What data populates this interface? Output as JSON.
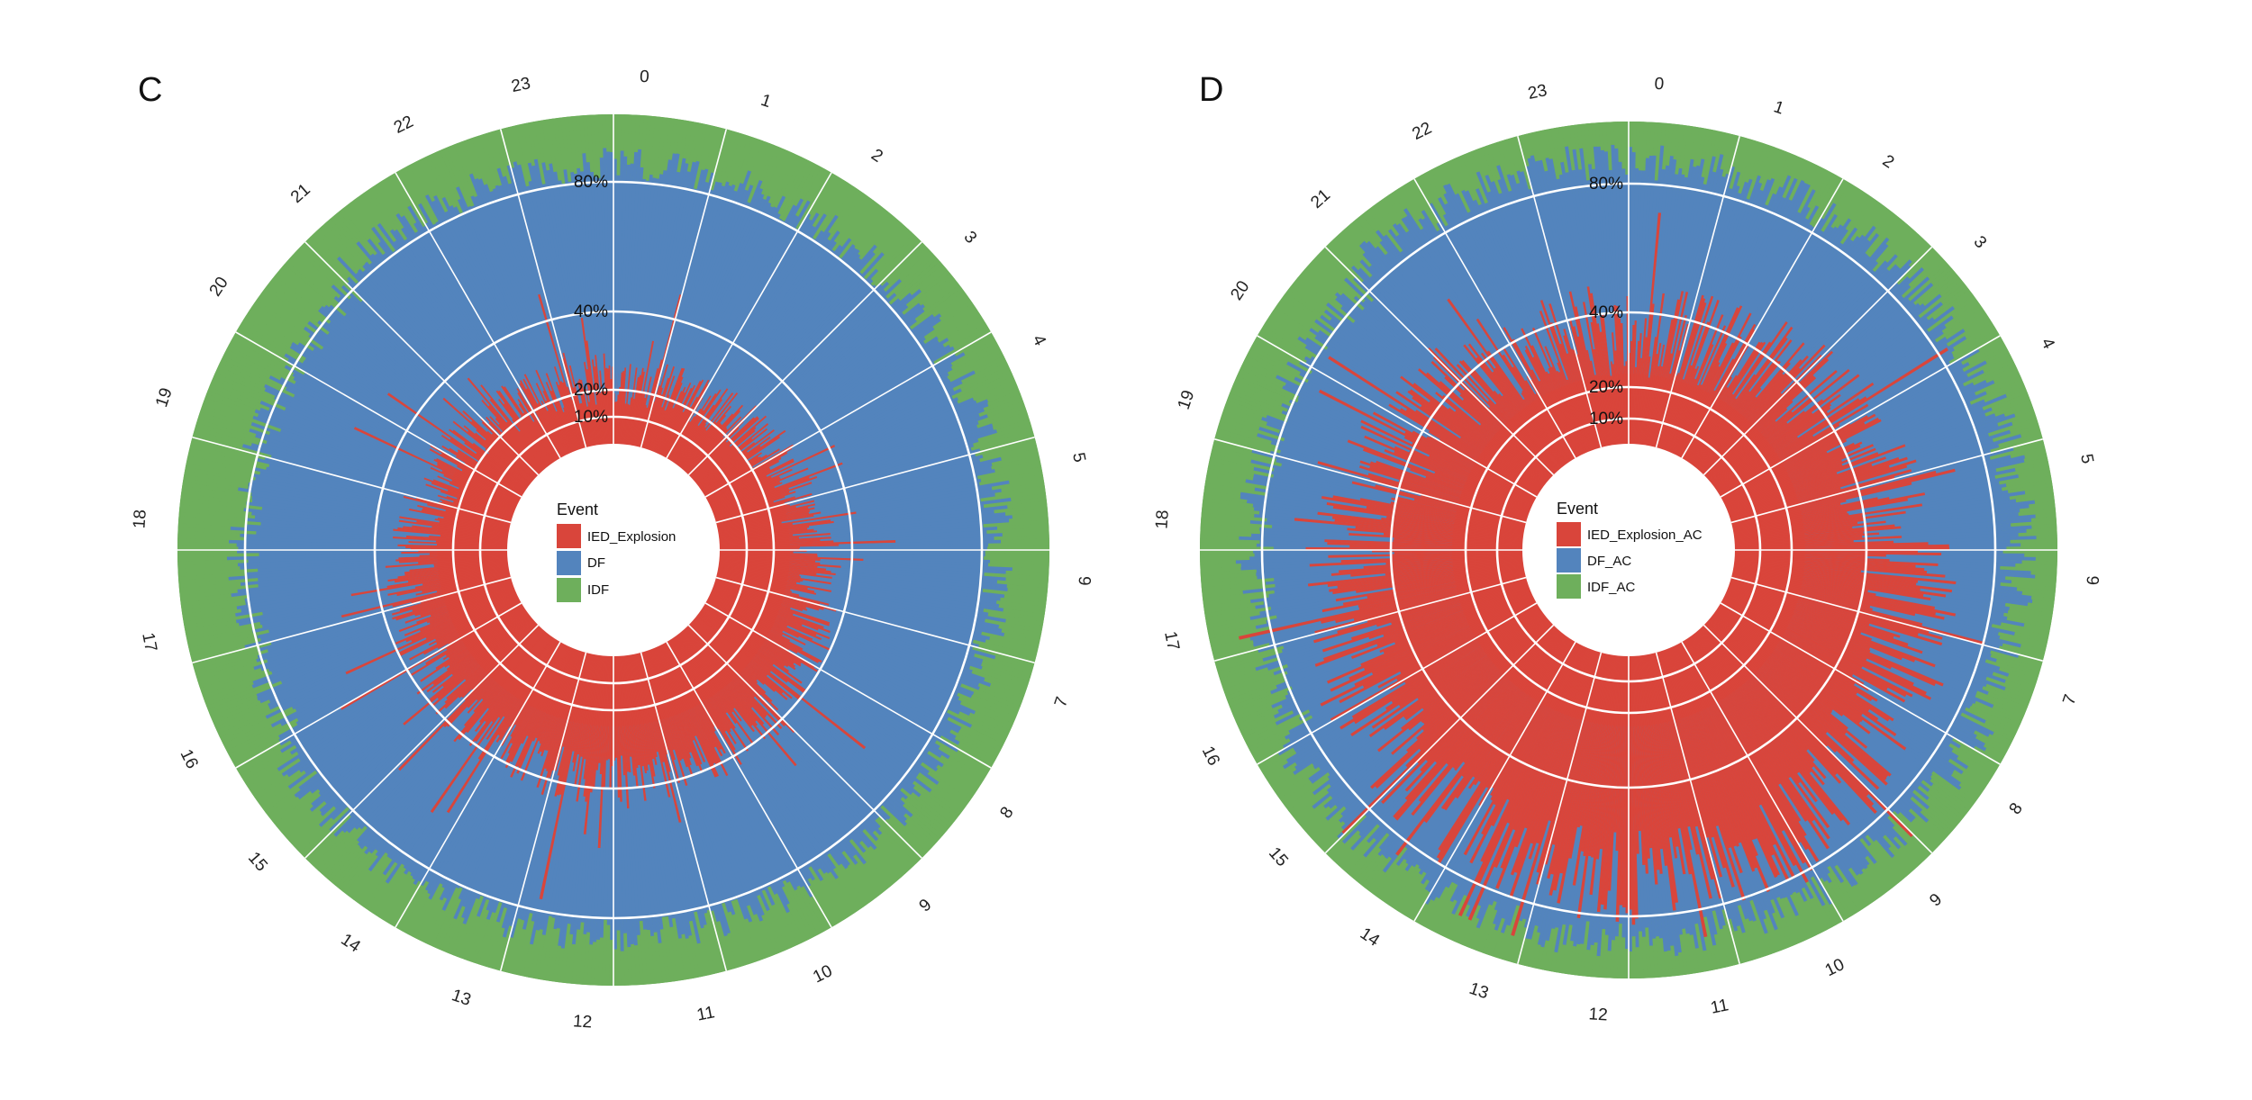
{
  "figure": {
    "colors": {
      "red": "#d9453b",
      "blue": "#5384bd",
      "green": "#6eaf5c",
      "grid": "#ffffff"
    }
  },
  "chart_data": [
    {
      "panel": "C",
      "type": "radial-stacked-bar",
      "hour_labels": [
        "0",
        "1",
        "2",
        "3",
        "4",
        "5",
        "6",
        "7",
        "8",
        "9",
        "10",
        "11",
        "12",
        "13",
        "14",
        "15",
        "16",
        "17",
        "18",
        "19",
        "20",
        "21",
        "22",
        "23"
      ],
      "radial_axis_labels": [
        "10%",
        "20%",
        "40%",
        "80%"
      ],
      "radial_axis_values": [
        10,
        20,
        40,
        80
      ],
      "legend": {
        "title": "Event",
        "entries": [
          "IED_Explosion",
          "DF",
          "IDF"
        ]
      },
      "series": [
        {
          "name": "IED_Explosion",
          "color": "#d9453b",
          "approx_share_pct": 14
        },
        {
          "name": "DF",
          "color": "#5384bd",
          "approx_share_pct": 62
        },
        {
          "name": "IDF",
          "color": "#6eaf5c",
          "approx_share_pct": 24
        }
      ],
      "grid": true
    },
    {
      "panel": "D",
      "type": "radial-stacked-bar",
      "hour_labels": [
        "0",
        "1",
        "2",
        "3",
        "4",
        "5",
        "6",
        "7",
        "8",
        "9",
        "10",
        "11",
        "12",
        "13",
        "14",
        "15",
        "16",
        "17",
        "18",
        "19",
        "20",
        "21",
        "22",
        "23"
      ],
      "radial_axis_labels": [
        "10%",
        "20%",
        "40%",
        "80%"
      ],
      "radial_axis_values": [
        10,
        20,
        40,
        80
      ],
      "legend": {
        "title": "Event",
        "entries": [
          "IED_Explosion_AC",
          "DF_AC",
          "IDF_AC"
        ]
      },
      "series": [
        {
          "name": "IED_Explosion_AC",
          "color": "#d9453b",
          "approx_share_pct": 30
        },
        {
          "name": "DF_AC",
          "color": "#5384bd",
          "approx_share_pct": 55
        },
        {
          "name": "IDF_AC",
          "color": "#6eaf5c",
          "approx_share_pct": 15
        }
      ],
      "grid": true
    }
  ]
}
